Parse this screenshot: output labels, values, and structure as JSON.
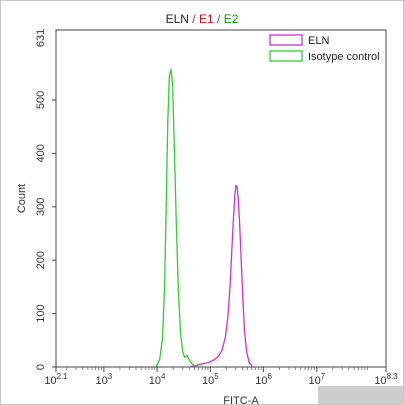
{
  "chart_data": {
    "type": "line",
    "title": {
      "name": "ELN",
      "e1": "E1",
      "e2": "E2",
      "separator": " / "
    },
    "xlabel": "FITC-A",
    "ylabel": "Count",
    "xscale": "log",
    "xlim": [
      2.1,
      8.3
    ],
    "ylim": [
      0,
      631
    ],
    "yticks": [
      0,
      100,
      200,
      300,
      400,
      500
    ],
    "ytick_labels": [
      "0",
      "100",
      "200",
      "300",
      "400",
      "500"
    ],
    "ymax_label": "631",
    "xticks": [
      {
        "exp": 2.1,
        "base": "10",
        "sup": "2.1"
      },
      {
        "exp": 3,
        "base": "10",
        "sup": "3"
      },
      {
        "exp": 4,
        "base": "10",
        "sup": "4"
      },
      {
        "exp": 5,
        "base": "10",
        "sup": "5"
      },
      {
        "exp": 6,
        "base": "10",
        "sup": "6"
      },
      {
        "exp": 7,
        "base": "10",
        "sup": "7"
      },
      {
        "exp": 8.3,
        "base": "10",
        "sup": "8.3"
      }
    ],
    "legend_position": "top-right",
    "grid": false,
    "series": [
      {
        "name": "ELN",
        "color": "#cc33cc",
        "points": [
          [
            4.6,
            0
          ],
          [
            4.75,
            3
          ],
          [
            4.85,
            6
          ],
          [
            4.95,
            8
          ],
          [
            5.0,
            10
          ],
          [
            5.08,
            14
          ],
          [
            5.15,
            20
          ],
          [
            5.22,
            32
          ],
          [
            5.28,
            55
          ],
          [
            5.33,
            95
          ],
          [
            5.37,
            150
          ],
          [
            5.4,
            210
          ],
          [
            5.43,
            270
          ],
          [
            5.46,
            320
          ],
          [
            5.48,
            340
          ],
          [
            5.5,
            338
          ],
          [
            5.52,
            320
          ],
          [
            5.55,
            270
          ],
          [
            5.58,
            200
          ],
          [
            5.61,
            130
          ],
          [
            5.64,
            70
          ],
          [
            5.68,
            30
          ],
          [
            5.73,
            8
          ],
          [
            5.8,
            0
          ]
        ]
      },
      {
        "name": "Isotype control",
        "color": "#33cc33",
        "points": [
          [
            3.95,
            0
          ],
          [
            4.0,
            3
          ],
          [
            4.05,
            15
          ],
          [
            4.1,
            55
          ],
          [
            4.14,
            150
          ],
          [
            4.17,
            300
          ],
          [
            4.2,
            460
          ],
          [
            4.23,
            545
          ],
          [
            4.26,
            558
          ],
          [
            4.29,
            530
          ],
          [
            4.32,
            420
          ],
          [
            4.36,
            270
          ],
          [
            4.4,
            140
          ],
          [
            4.44,
            65
          ],
          [
            4.48,
            28
          ],
          [
            4.52,
            18
          ],
          [
            4.56,
            22
          ],
          [
            4.6,
            14
          ],
          [
            4.66,
            5
          ],
          [
            4.75,
            0
          ]
        ]
      }
    ]
  },
  "footer_blur_color": "#c4c4c4"
}
